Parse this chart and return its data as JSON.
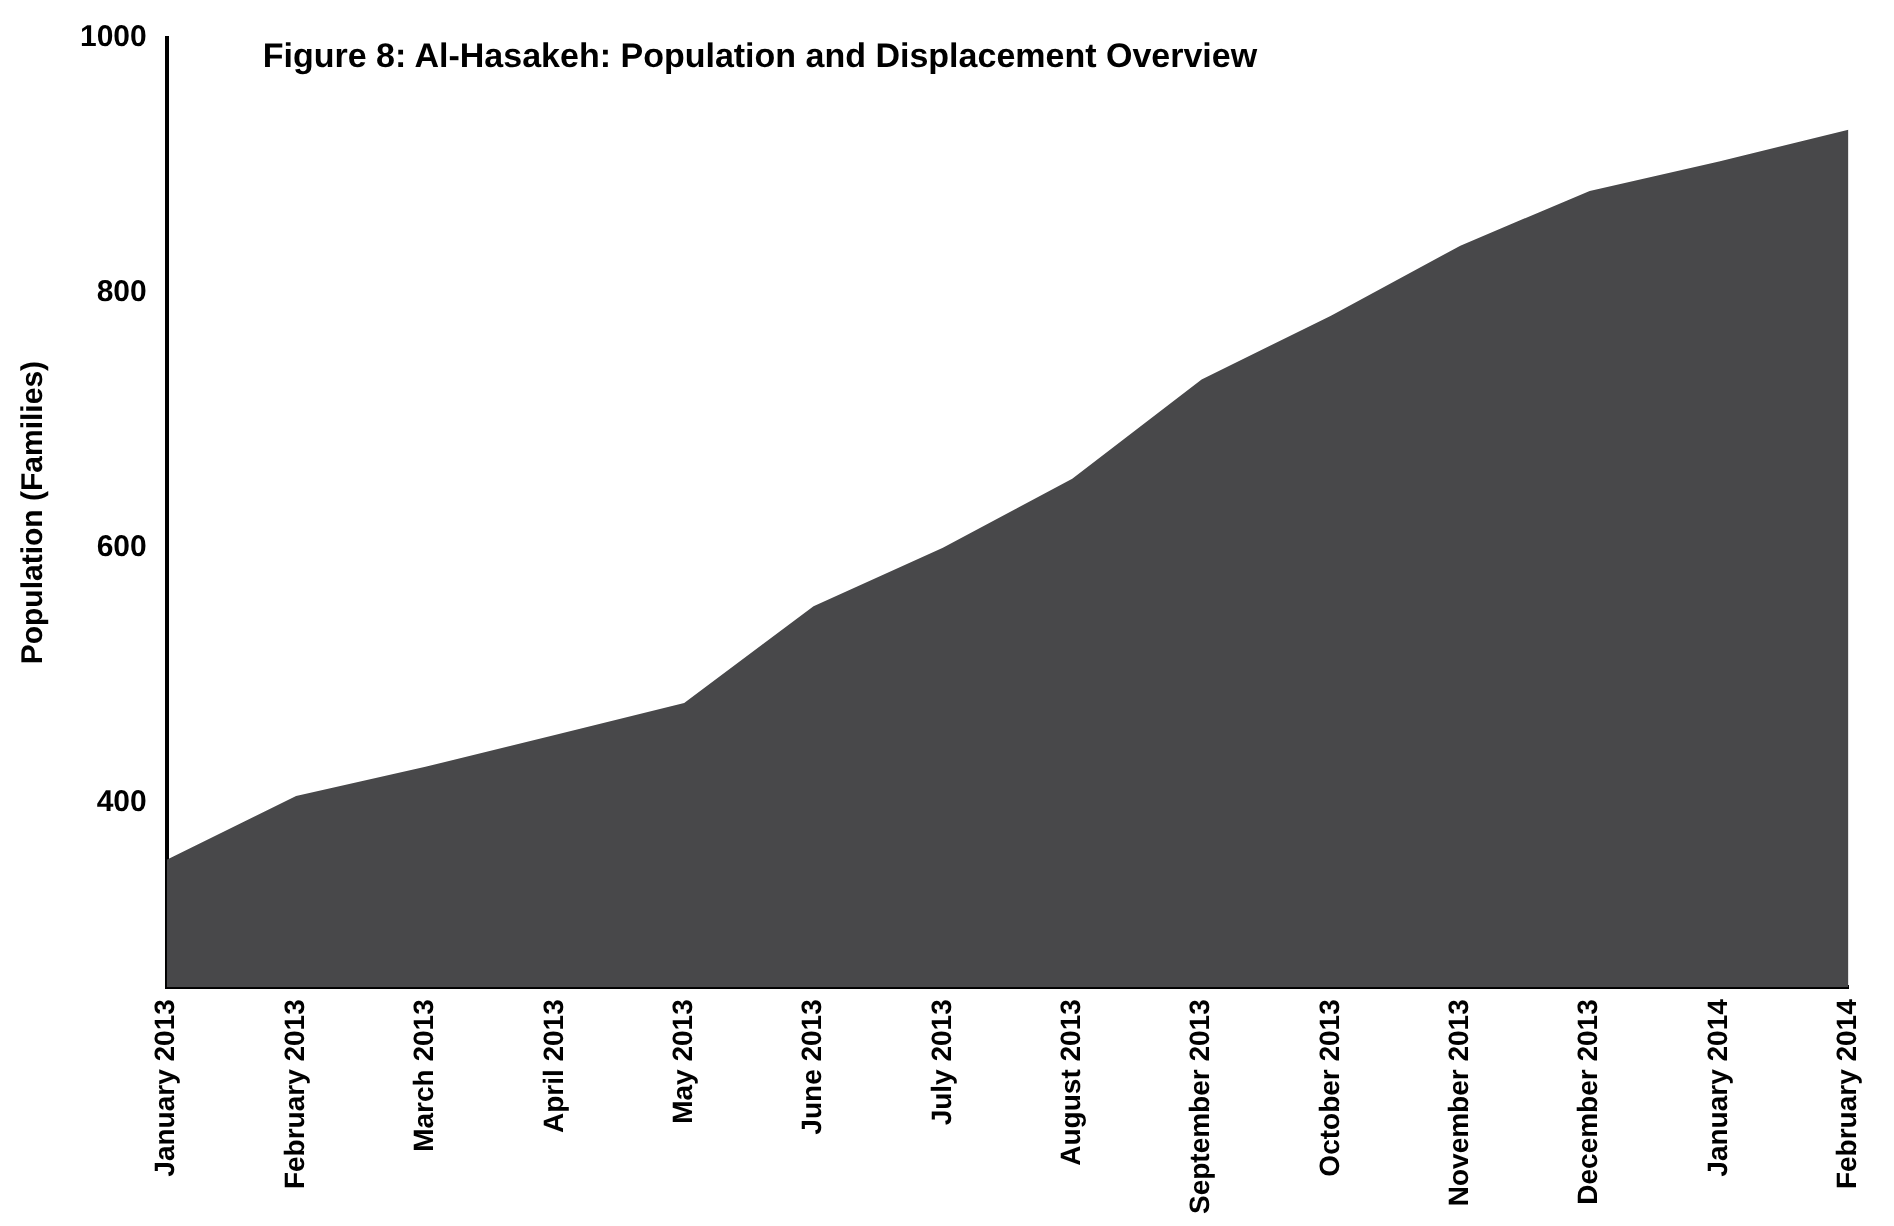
{
  "chart_data": {
    "type": "area",
    "title": "Figure 8: Al-Hasakeh: Population and Displacement Overview",
    "ylabel": "Population (Families)",
    "categories": [
      "January 2013",
      "February 2013",
      "March 2013",
      "April 2013",
      "May 2013",
      "June 2013",
      "July 2013",
      "August 2013",
      "September 2013",
      "October 2013",
      "November 2013",
      "December 2013",
      "January 2014",
      "February 2014"
    ],
    "series": [
      {
        "color": "#48484a",
        "values": [
          355,
          405,
          428,
          453,
          478,
          554,
          600,
          654,
          732,
          782,
          837,
          880,
          903,
          928
        ]
      }
    ],
    "ylim": [
      255,
      1000
    ],
    "yticks": [
      400,
      600,
      800,
      1000
    ],
    "grid": false,
    "legend": false
  }
}
